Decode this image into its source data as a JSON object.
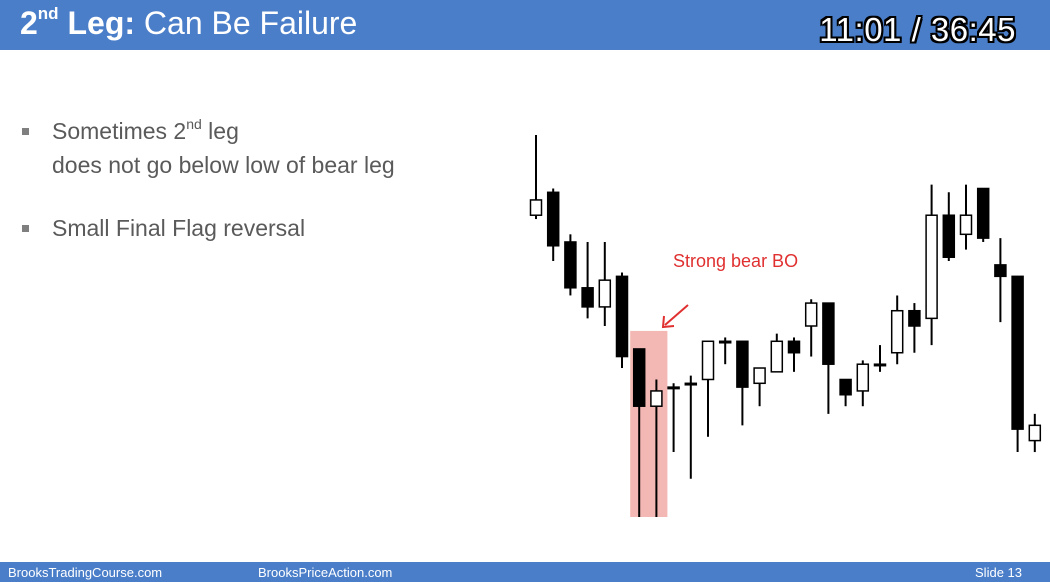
{
  "header": {
    "title_pre": "2",
    "title_sup": "nd",
    "title_bold_rest": " Leg:",
    "title_rest": " Can Be Failure",
    "timer": "11:01 / 36:45"
  },
  "bullets": [
    {
      "line1_pre": "Sometimes 2",
      "line1_sup": "nd",
      "line1_post": " leg",
      "line2": "does not go below low of bear leg"
    },
    {
      "line1": "Small Final Flag reversal"
    }
  ],
  "chart_data": {
    "type": "candlestick",
    "annotation": "Strong bear BO",
    "annotation_color": "#e03030",
    "highlight_color": "#f4b8b4",
    "up_color": "#ffffff",
    "down_color": "#000000",
    "price_range": [
      0,
      100
    ],
    "bars": [
      {
        "high": 100,
        "low": 78,
        "open": 79,
        "close": 83
      },
      {
        "high": 86,
        "low": 67,
        "open": 85,
        "close": 71
      },
      {
        "high": 74,
        "low": 58,
        "open": 72,
        "close": 60
      },
      {
        "high": 72,
        "low": 52,
        "open": 60,
        "close": 55
      },
      {
        "high": 72,
        "low": 50,
        "open": 55,
        "close": 62
      },
      {
        "high": 64,
        "low": 39,
        "open": 63,
        "close": 42
      },
      {
        "high": 44,
        "low": 0,
        "open": 44,
        "close": 29
      },
      {
        "high": 36,
        "low": 0,
        "open": 29,
        "close": 33
      },
      {
        "high": 35,
        "low": 17,
        "open": 34,
        "close": 34
      },
      {
        "high": 37,
        "low": 10,
        "open": 35,
        "close": 35
      },
      {
        "high": 46,
        "low": 21,
        "open": 36,
        "close": 46
      },
      {
        "high": 47,
        "low": 40,
        "open": 46,
        "close": 46
      },
      {
        "high": 46,
        "low": 24,
        "open": 46,
        "close": 34
      },
      {
        "high": 39,
        "low": 29,
        "open": 35,
        "close": 39
      },
      {
        "high": 48,
        "low": 38,
        "open": 38,
        "close": 46
      },
      {
        "high": 47,
        "low": 38,
        "open": 46,
        "close": 43
      },
      {
        "high": 57,
        "low": 42,
        "open": 50,
        "close": 56
      },
      {
        "high": 56,
        "low": 27,
        "open": 56,
        "close": 40
      },
      {
        "high": 36,
        "low": 29,
        "open": 36,
        "close": 32
      },
      {
        "high": 41,
        "low": 29,
        "open": 33,
        "close": 40
      },
      {
        "high": 45,
        "low": 38,
        "open": 40,
        "close": 40
      },
      {
        "high": 58,
        "low": 40,
        "open": 43,
        "close": 54
      },
      {
        "high": 56,
        "low": 43,
        "open": 54,
        "close": 50
      },
      {
        "high": 87,
        "low": 45,
        "open": 52,
        "close": 79
      },
      {
        "high": 85,
        "low": 67,
        "open": 79,
        "close": 68
      },
      {
        "high": 87,
        "low": 70,
        "open": 74,
        "close": 79
      },
      {
        "high": 86,
        "low": 72,
        "open": 86,
        "close": 73
      },
      {
        "high": 73,
        "low": 51,
        "open": 66,
        "close": 63
      },
      {
        "high": 63,
        "low": 17,
        "open": 63,
        "close": 23
      },
      {
        "high": 27,
        "low": 17,
        "open": 20,
        "close": 24
      }
    ]
  },
  "footer": {
    "left": "BrooksTradingCourse.com",
    "center": "BrooksPriceAction.com",
    "right": "Slide  13"
  }
}
